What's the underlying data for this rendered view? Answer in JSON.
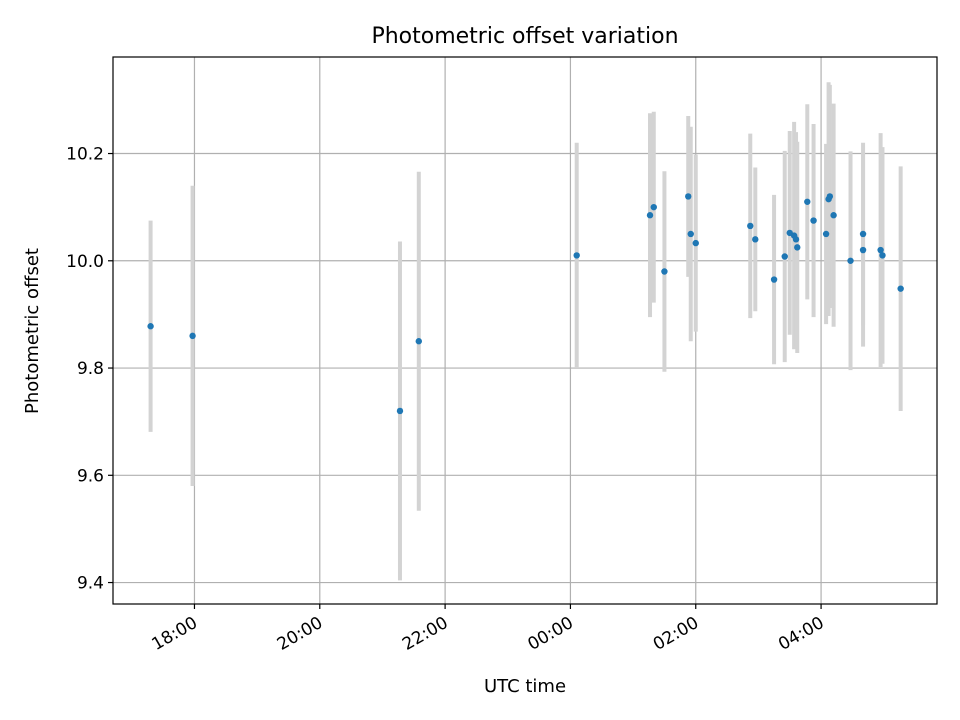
{
  "chart_data": {
    "type": "scatter",
    "title": "Photometric offset variation",
    "xlabel": "UTC time",
    "ylabel": "Photometric offset",
    "x_unit": "hours relative to 00:00 UTC",
    "xlim": [
      -7.3,
      5.85
    ],
    "ylim": [
      9.36,
      10.38
    ],
    "x_ticks": [
      {
        "value": -6,
        "label": "18:00"
      },
      {
        "value": -4,
        "label": "20:00"
      },
      {
        "value": -2,
        "label": "22:00"
      },
      {
        "value": 0,
        "label": "00:00"
      },
      {
        "value": 2,
        "label": "02:00"
      },
      {
        "value": 4,
        "label": "04:00"
      }
    ],
    "y_ticks": [
      {
        "value": 9.4,
        "label": "9.4"
      },
      {
        "value": 9.6,
        "label": "9.6"
      },
      {
        "value": 9.8,
        "label": "9.8"
      },
      {
        "value": 10.0,
        "label": "10.0"
      },
      {
        "value": 10.2,
        "label": "10.2"
      }
    ],
    "grid": true,
    "colors": {
      "point": "#1f77b4",
      "errorbar": "#d3d3d3",
      "grid": "#b0b0b0"
    },
    "points": [
      {
        "x": -6.7,
        "y": 9.878,
        "err": 0.197
      },
      {
        "x": -6.03,
        "y": 9.86,
        "err": 0.28
      },
      {
        "x": -2.72,
        "y": 9.72,
        "err": 0.316
      },
      {
        "x": -2.42,
        "y": 9.85,
        "err": 0.316
      },
      {
        "x": 0.1,
        "y": 10.01,
        "err": 0.21
      },
      {
        "x": 1.27,
        "y": 10.085,
        "err": 0.19
      },
      {
        "x": 1.33,
        "y": 10.1,
        "err": 0.178
      },
      {
        "x": 1.5,
        "y": 9.98,
        "err": 0.187
      },
      {
        "x": 1.88,
        "y": 10.12,
        "err": 0.15
      },
      {
        "x": 1.92,
        "y": 10.05,
        "err": 0.2
      },
      {
        "x": 2.0,
        "y": 10.033,
        "err": 0.165
      },
      {
        "x": 2.87,
        "y": 10.065,
        "err": 0.172
      },
      {
        "x": 2.95,
        "y": 10.04,
        "err": 0.134
      },
      {
        "x": 3.25,
        "y": 9.965,
        "err": 0.158
      },
      {
        "x": 3.42,
        "y": 10.008,
        "err": 0.197
      },
      {
        "x": 3.5,
        "y": 10.052,
        "err": 0.19
      },
      {
        "x": 3.57,
        "y": 10.047,
        "err": 0.212
      },
      {
        "x": 3.6,
        "y": 10.04,
        "err": 0.2
      },
      {
        "x": 3.62,
        "y": 10.025,
        "err": 0.197
      },
      {
        "x": 3.78,
        "y": 10.11,
        "err": 0.182
      },
      {
        "x": 3.88,
        "y": 10.075,
        "err": 0.18
      },
      {
        "x": 4.08,
        "y": 10.05,
        "err": 0.168
      },
      {
        "x": 4.12,
        "y": 10.115,
        "err": 0.218
      },
      {
        "x": 4.14,
        "y": 10.12,
        "err": 0.208
      },
      {
        "x": 4.2,
        "y": 10.085,
        "err": 0.208
      },
      {
        "x": 4.47,
        "y": 10.0,
        "err": 0.204
      },
      {
        "x": 4.67,
        "y": 10.02,
        "err": 0.18
      },
      {
        "x": 4.67,
        "y": 10.05,
        "err": 0.17
      },
      {
        "x": 4.95,
        "y": 10.02,
        "err": 0.218
      },
      {
        "x": 4.98,
        "y": 10.01,
        "err": 0.202
      },
      {
        "x": 5.27,
        "y": 9.948,
        "err": 0.228
      }
    ]
  }
}
